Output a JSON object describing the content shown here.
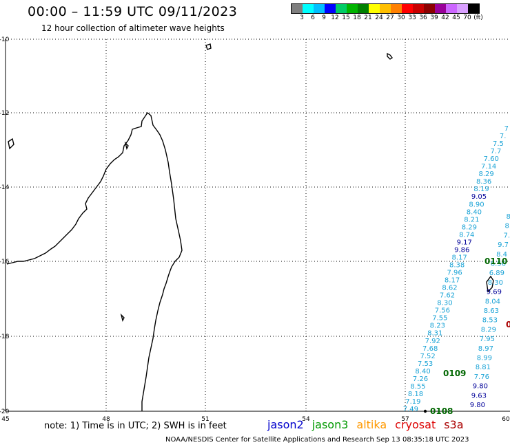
{
  "title": "00:00 – 11:59 UTC 09/11/2023",
  "subtitle": "12 hour collection of altimeter wave heights",
  "colorbar": {
    "colors": [
      "#7f7f7f",
      "#00ffff",
      "#00bfff",
      "#0000ff",
      "#00cc66",
      "#00b400",
      "#008000",
      "#ffff00",
      "#ffbf00",
      "#ff8000",
      "#ff0000",
      "#c80000",
      "#8b0000",
      "#990099",
      "#cc66ff",
      "#d9a0ff",
      "#000000"
    ],
    "labels": [
      "3",
      "6",
      "9",
      "12",
      "15",
      "18",
      "21",
      "24",
      "27",
      "30",
      "33",
      "36",
      "39",
      "42",
      "45",
      "70",
      "(ft)"
    ]
  },
  "axes": {
    "lon_ticks": [
      "45",
      "48",
      "51",
      "54",
      "57",
      "60"
    ],
    "lat_ticks": [
      "-10",
      "-12",
      "-14",
      "-16",
      "-18",
      "-20"
    ]
  },
  "tracks": {
    "left_track": [
      "7.49",
      "7.19",
      "8.18",
      "8.55",
      "7.26",
      "8.40",
      "7.53",
      "7.52",
      "7.68",
      "7.92",
      "8.31",
      "8.23",
      "7.55",
      "7.56",
      "8.30",
      "7.62",
      "8.62",
      "8.17",
      "7.96",
      "8.38",
      "8.17",
      "9.86",
      "9.17",
      "8.74",
      "8.29",
      "8.21",
      "8.40",
      "8.90",
      "9.05",
      "8.19",
      "8.36",
      "8.29",
      "7.14",
      "7.60",
      "7.7",
      "7.5",
      "7.",
      "7"
    ],
    "right_track": [
      "9.80",
      "9.63",
      "9.80",
      "7.76",
      "8.81",
      "8.99",
      "8.97",
      "7.95",
      "8.29",
      "8.53",
      "8.63",
      "8.04",
      "9.69",
      "8.30",
      "6.89",
      "6.56",
      "8.4",
      "9.7",
      "7.",
      "8.",
      "8."
    ],
    "pass_labels": [
      "0108",
      "0109",
      "0110",
      "0"
    ]
  },
  "note": "note:  1) Time is in UTC;  2) SWH is in feet",
  "satellites": [
    {
      "name": "jason2",
      "color": "#0000cc"
    },
    {
      "name": "jason3",
      "color": "#009900"
    },
    {
      "name": "altika",
      "color": "#ff9900"
    },
    {
      "name": "cryosat",
      "color": "#dd0000"
    },
    {
      "name": "s3a",
      "color": "#aa0000"
    }
  ],
  "credit": "NOAA/NESDIS Center for Satellite Applications and Research    Sep 13 08:35:18 UTC 2023"
}
